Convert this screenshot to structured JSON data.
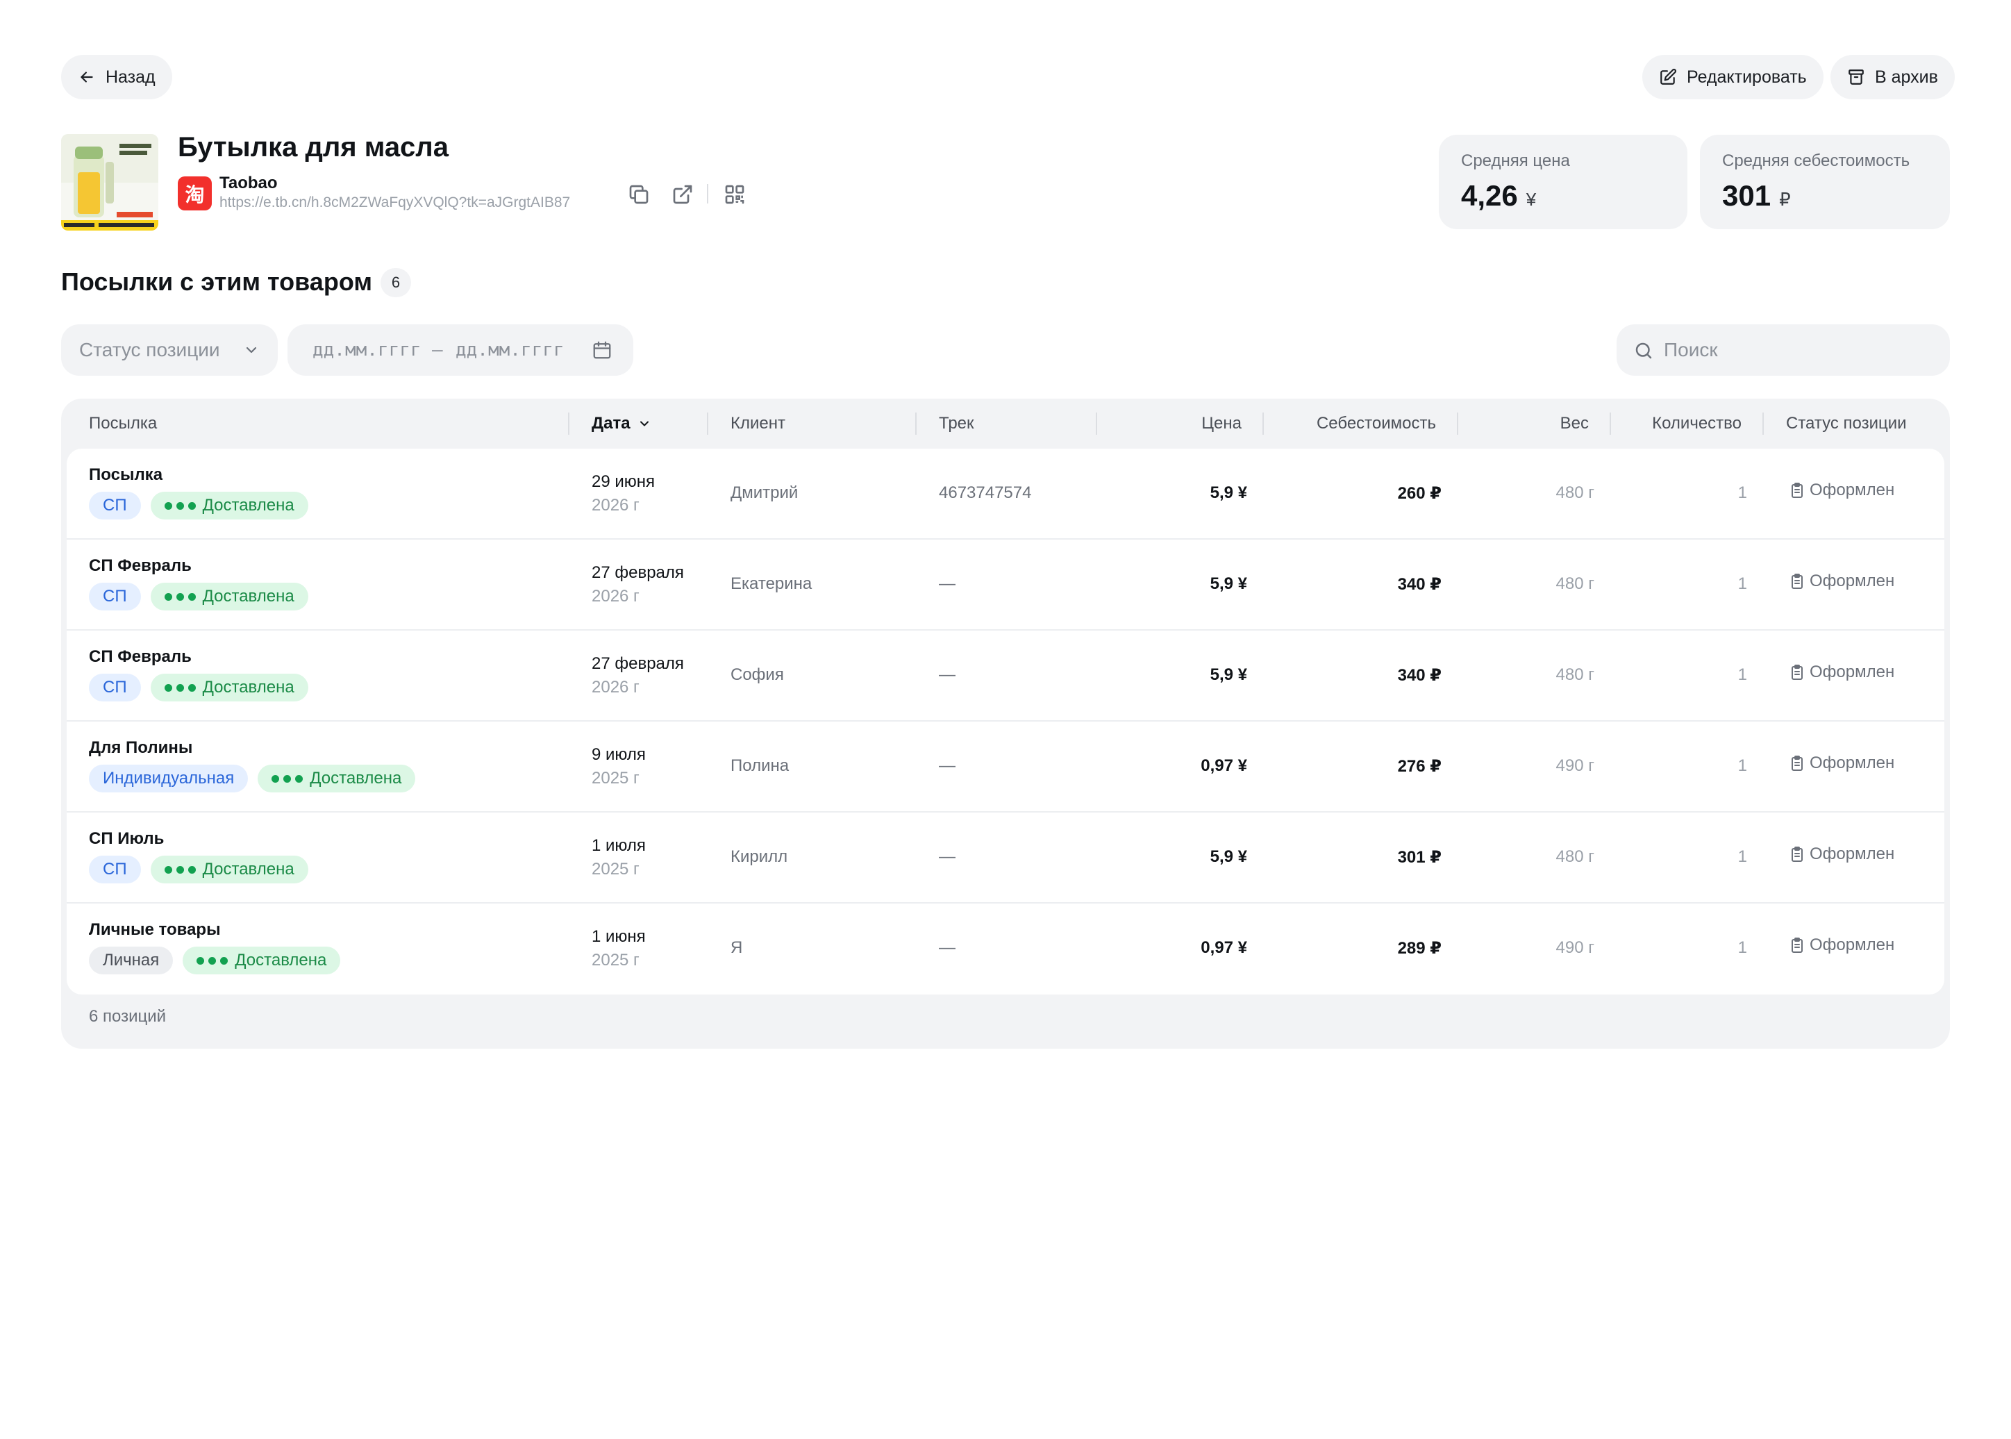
{
  "nav": {
    "back_label": "Назад",
    "edit_label": "Редактировать",
    "archive_label": "В архив"
  },
  "product": {
    "title": "Бутылка для масла",
    "shop_name": "Taobao",
    "shop_logo_glyph": "淘",
    "url": "https://e.tb.cn/h.8cM2ZWaFqyXVQlQ?tk=aJGrgtAIB87"
  },
  "stats": [
    {
      "label": "Средняя цена",
      "value": "4,26",
      "currency": "¥"
    },
    {
      "label": "Средняя себестоимость",
      "value": "301",
      "currency": "₽"
    }
  ],
  "section": {
    "title": "Посылки с этим товаром",
    "count": "6"
  },
  "filters": {
    "status_placeholder": "Статус позиции",
    "date_from_placeholder": "дд.мм.гггг",
    "date_separator": "–",
    "date_to_placeholder": "дд.мм.гггг",
    "search_placeholder": "Поиск"
  },
  "table": {
    "columns": {
      "parcel": "Посылка",
      "date": "Дата",
      "client": "Клиент",
      "track": "Трек",
      "price": "Цена",
      "cost": "Себестоимость",
      "weight": "Вес",
      "qty": "Количество",
      "status": "Статус позиции"
    },
    "rows": [
      {
        "name": "Посылка",
        "type": "СП",
        "delivery": "Доставлена",
        "date": "29 июня",
        "year": "2026 г",
        "client": "Дмитрий",
        "track": "4673747574",
        "price": "5,9 ¥",
        "cost": "260 ₽",
        "weight": "480 г",
        "qty": "1",
        "status": "Оформлен"
      },
      {
        "name": "СП Февраль",
        "type": "СП",
        "delivery": "Доставлена",
        "date": "27 февраля",
        "year": "2026 г",
        "client": "Екатерина",
        "track": "—",
        "price": "5,9 ¥",
        "cost": "340 ₽",
        "weight": "480 г",
        "qty": "1",
        "status": "Оформлен"
      },
      {
        "name": "СП Февраль",
        "type": "СП",
        "delivery": "Доставлена",
        "date": "27 февраля",
        "year": "2026 г",
        "client": "София",
        "track": "—",
        "price": "5,9 ¥",
        "cost": "340 ₽",
        "weight": "480 г",
        "qty": "1",
        "status": "Оформлен"
      },
      {
        "name": "Для Полины",
        "type": "Индивидуальная",
        "delivery": "Доставлена",
        "date": "9 июля",
        "year": "2025 г",
        "client": "Полина",
        "track": "—",
        "price": "0,97 ¥",
        "cost": "276 ₽",
        "weight": "490 г",
        "qty": "1",
        "status": "Оформлен"
      },
      {
        "name": "СП Июль",
        "type": "СП",
        "delivery": "Доставлена",
        "date": "1 июля",
        "year": "2025 г",
        "client": "Кирилл",
        "track": "—",
        "price": "5,9 ¥",
        "cost": "301 ₽",
        "weight": "480 г",
        "qty": "1",
        "status": "Оформлен"
      },
      {
        "name": "Личные товары",
        "type": "Личная",
        "delivery": "Доставлена",
        "date": "1 июня",
        "year": "2025 г",
        "client": "Я",
        "track": "—",
        "price": "0,97 ¥",
        "cost": "289 ₽",
        "weight": "490 г",
        "qty": "1",
        "status": "Оформлен"
      }
    ],
    "footer": "6 позиций"
  }
}
